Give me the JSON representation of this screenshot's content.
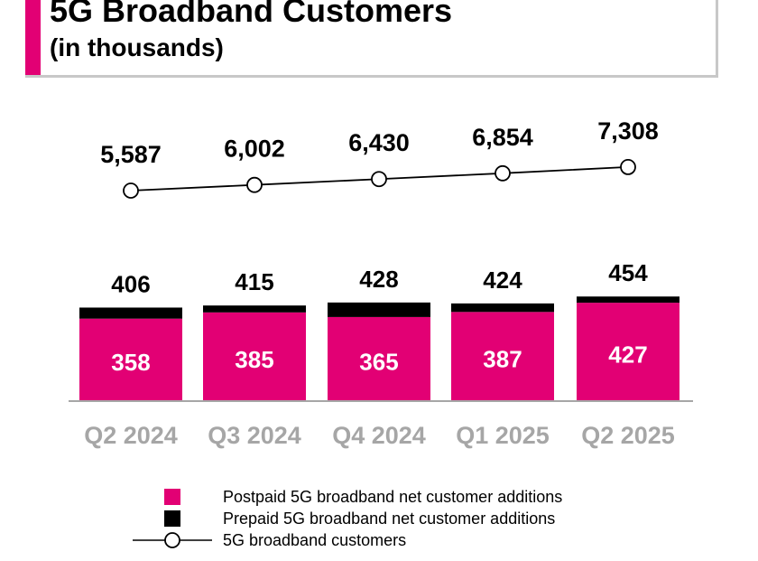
{
  "title": "5G Broadband Customers",
  "subtitle": "(in thousands)",
  "colors": {
    "accent": "#e20074",
    "postpaid": "#e20074",
    "prepaid": "#000000",
    "axis_label": "#a6a6a6",
    "title_border": "#c8c8c8"
  },
  "legend": {
    "postpaid": "Postpaid 5G broadband net customer additions",
    "prepaid": "Prepaid 5G broadband net customer additions",
    "customers": "5G broadband customers"
  },
  "chart_data": [
    {
      "type": "bar",
      "stacked": true,
      "title": "5G broadband net customer additions",
      "categories": [
        "Q2 2024",
        "Q3 2024",
        "Q4 2024",
        "Q1 2025",
        "Q2 2025"
      ],
      "series": [
        {
          "name": "Postpaid 5G broadband net customer additions",
          "values": [
            358,
            385,
            365,
            387,
            427
          ]
        },
        {
          "name": "Prepaid 5G broadband net customer additions",
          "values": [
            48,
            30,
            63,
            37,
            27
          ]
        }
      ],
      "totals": [
        406,
        415,
        428,
        424,
        454
      ],
      "ylim": [
        0,
        460
      ],
      "grid": false
    },
    {
      "type": "line",
      "title": "5G broadband customers",
      "categories": [
        "Q2 2024",
        "Q3 2024",
        "Q4 2024",
        "Q1 2025",
        "Q2 2025"
      ],
      "values": [
        5587,
        6002,
        6430,
        6854,
        7308
      ],
      "labels": [
        "5,587",
        "6,002",
        "6,430",
        "6,854",
        "7,308"
      ],
      "grid": false
    }
  ]
}
